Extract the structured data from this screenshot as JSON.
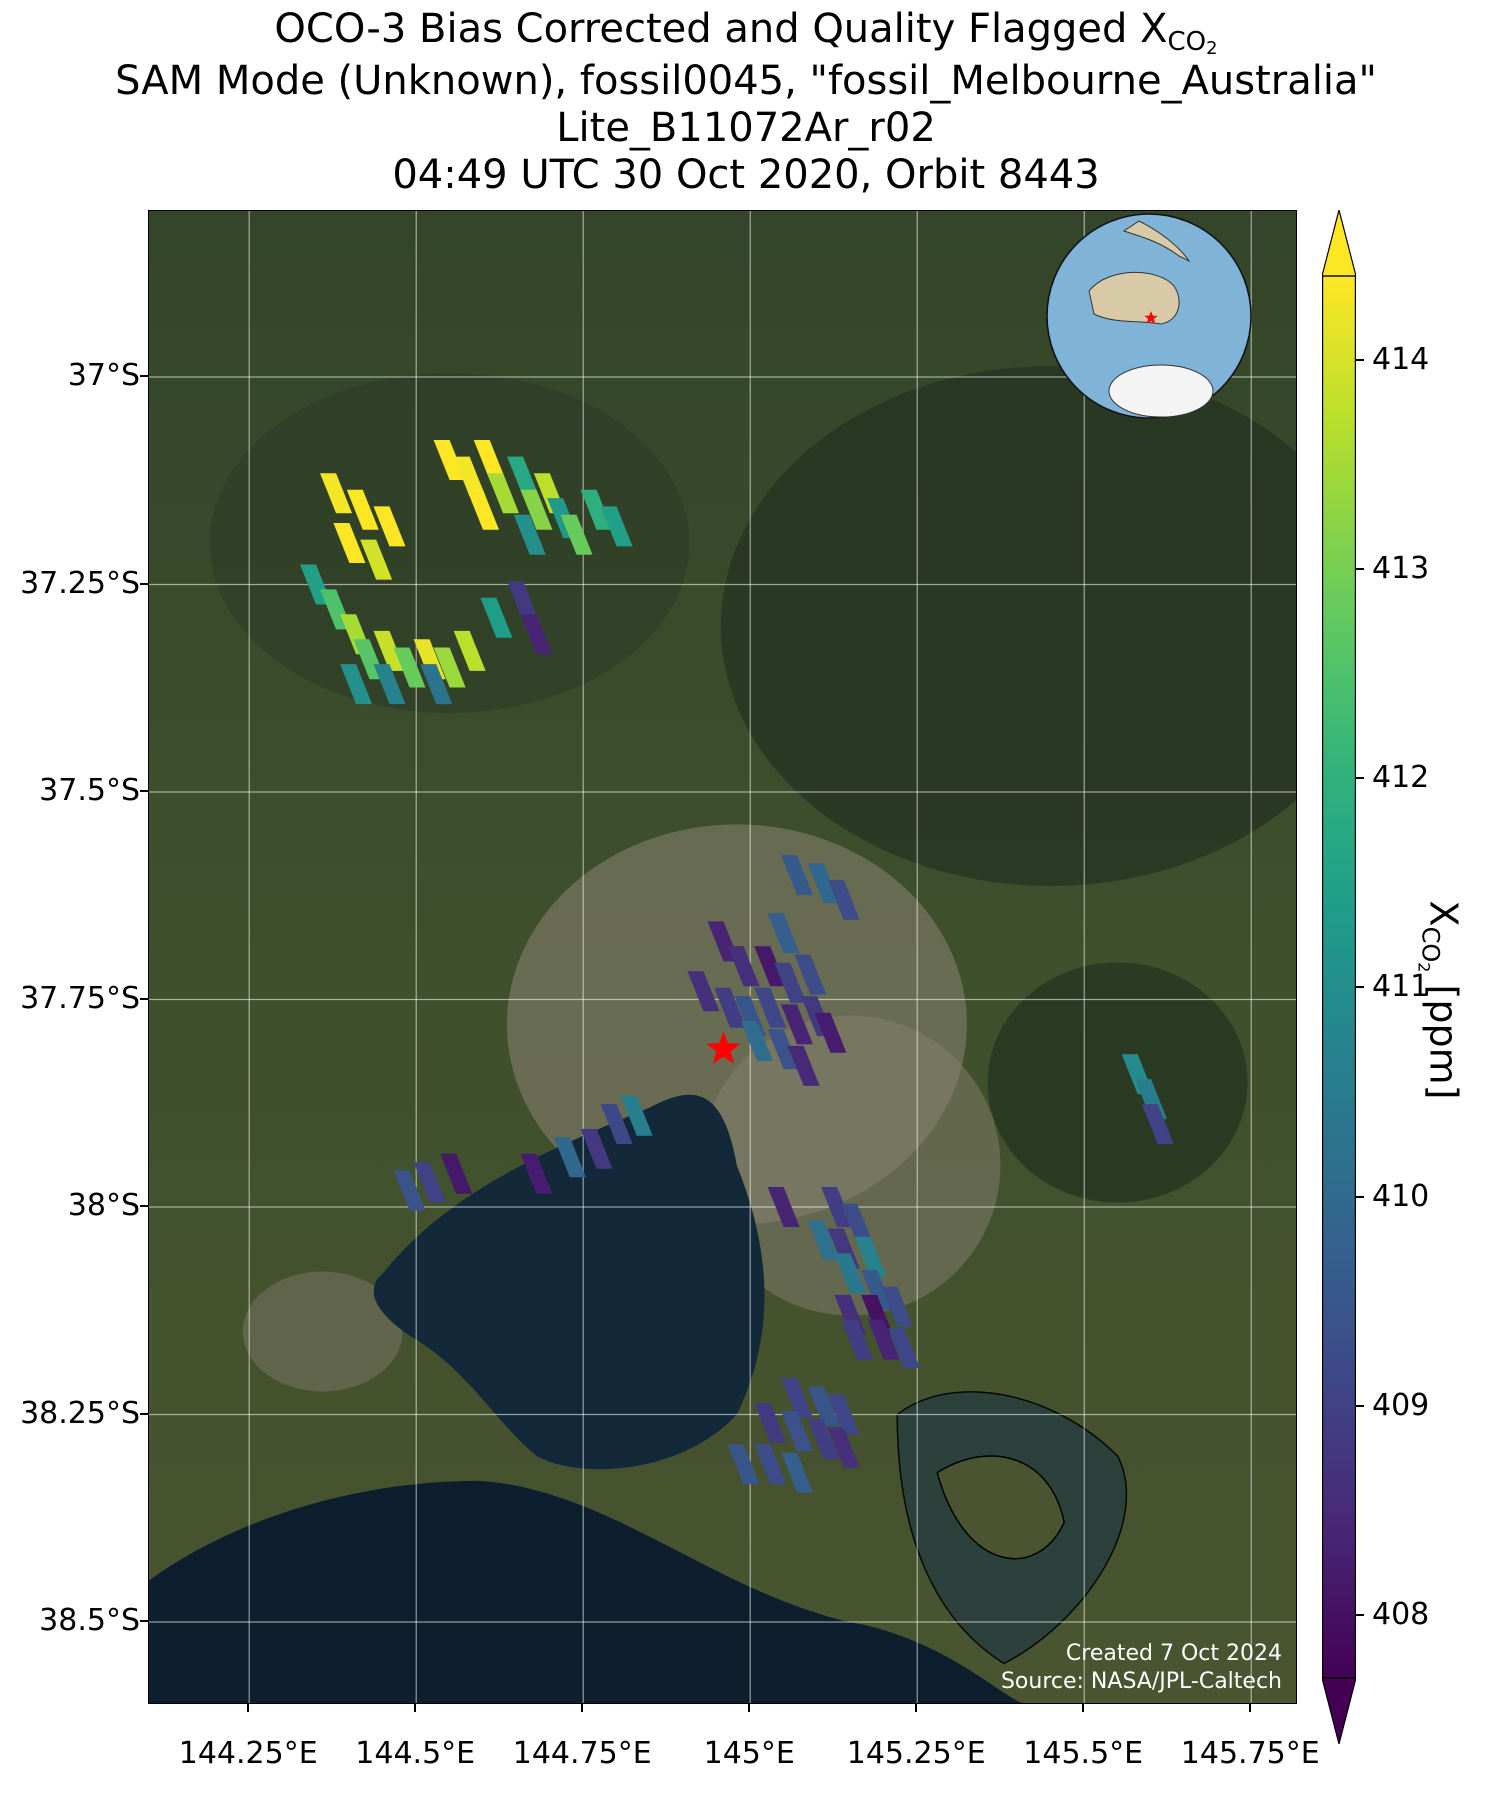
{
  "title": {
    "line1_main": "OCO-3 Bias Corrected and Quality Flagged X",
    "line1_sub": "CO",
    "line1_sub2": "2",
    "line2": "SAM Mode (Unknown), fossil0045, \"fossil_Melbourne_Australia\"",
    "line3": "Lite_B11072Ar_r02",
    "line4": "04:49 UTC 30 Oct 2020, Orbit 8443"
  },
  "map": {
    "lon_range": [
      144.1,
      145.82
    ],
    "lat_range": [
      -38.6,
      -36.8
    ],
    "lat_ticks": [
      {
        "value": -37.0,
        "label": "37°S"
      },
      {
        "value": -37.25,
        "label": "37.25°S"
      },
      {
        "value": -37.5,
        "label": "37.5°S"
      },
      {
        "value": -37.75,
        "label": "37.75°S"
      },
      {
        "value": -38.0,
        "label": "38°S"
      },
      {
        "value": -38.25,
        "label": "38.25°S"
      },
      {
        "value": -38.5,
        "label": "38.5°S"
      }
    ],
    "lon_ticks": [
      {
        "value": 144.25,
        "label": "144.25°E"
      },
      {
        "value": 144.5,
        "label": "144.5°E"
      },
      {
        "value": 144.75,
        "label": "144.75°E"
      },
      {
        "value": 145.0,
        "label": "145°E"
      },
      {
        "value": 145.25,
        "label": "145.25°E"
      },
      {
        "value": 145.5,
        "label": "145.5°E"
      },
      {
        "value": 145.75,
        "label": "145.75°E"
      }
    ],
    "target_marker": {
      "name": "fossil_Melbourne_Australia",
      "lon": 144.96,
      "lat": -37.81,
      "color": "#ff0000"
    },
    "soundings": [
      {
        "lon": 144.38,
        "lat": -37.14,
        "xco2": 413.9
      },
      {
        "lon": 144.42,
        "lat": -37.16,
        "xco2": 414.1
      },
      {
        "lon": 144.4,
        "lat": -37.2,
        "xco2": 414.0
      },
      {
        "lon": 144.44,
        "lat": -37.22,
        "xco2": 413.6
      },
      {
        "lon": 144.46,
        "lat": -37.18,
        "xco2": 414.2
      },
      {
        "lon": 144.55,
        "lat": -37.1,
        "xco2": 414.1
      },
      {
        "lon": 144.58,
        "lat": -37.12,
        "xco2": 413.9
      },
      {
        "lon": 144.61,
        "lat": -37.1,
        "xco2": 414.2
      },
      {
        "lon": 144.63,
        "lat": -37.14,
        "xco2": 413.2
      },
      {
        "lon": 144.66,
        "lat": -37.12,
        "xco2": 411.6
      },
      {
        "lon": 144.68,
        "lat": -37.16,
        "xco2": 412.9
      },
      {
        "lon": 144.7,
        "lat": -37.14,
        "xco2": 413.4
      },
      {
        "lon": 144.72,
        "lat": -37.17,
        "xco2": 411.2
      },
      {
        "lon": 144.74,
        "lat": -37.19,
        "xco2": 412.6
      },
      {
        "lon": 144.77,
        "lat": -37.16,
        "xco2": 411.8
      },
      {
        "lon": 144.8,
        "lat": -37.18,
        "xco2": 411.4
      },
      {
        "lon": 144.6,
        "lat": -37.16,
        "xco2": 414.0
      },
      {
        "lon": 144.67,
        "lat": -37.19,
        "xco2": 411.0
      },
      {
        "lon": 144.35,
        "lat": -37.25,
        "xco2": 411.4
      },
      {
        "lon": 144.38,
        "lat": -37.28,
        "xco2": 412.3
      },
      {
        "lon": 144.41,
        "lat": -37.31,
        "xco2": 413.2
      },
      {
        "lon": 144.43,
        "lat": -37.34,
        "xco2": 412.4
      },
      {
        "lon": 144.46,
        "lat": -37.33,
        "xco2": 413.5
      },
      {
        "lon": 144.49,
        "lat": -37.35,
        "xco2": 412.6
      },
      {
        "lon": 144.52,
        "lat": -37.34,
        "xco2": 413.8
      },
      {
        "lon": 144.55,
        "lat": -37.35,
        "xco2": 413.1
      },
      {
        "lon": 144.58,
        "lat": -37.33,
        "xco2": 413.4
      },
      {
        "lon": 144.41,
        "lat": -37.37,
        "xco2": 411.0
      },
      {
        "lon": 144.46,
        "lat": -37.37,
        "xco2": 410.7
      },
      {
        "lon": 144.53,
        "lat": -37.37,
        "xco2": 410.3
      },
      {
        "lon": 144.62,
        "lat": -37.29,
        "xco2": 411.3
      },
      {
        "lon": 144.66,
        "lat": -37.27,
        "xco2": 409.0
      },
      {
        "lon": 144.68,
        "lat": -37.31,
        "xco2": 408.6
      },
      {
        "lon": 145.07,
        "lat": -37.6,
        "xco2": 409.7
      },
      {
        "lon": 145.11,
        "lat": -37.61,
        "xco2": 410.0
      },
      {
        "lon": 145.14,
        "lat": -37.63,
        "xco2": 409.4
      },
      {
        "lon": 145.05,
        "lat": -37.67,
        "xco2": 409.8
      },
      {
        "lon": 144.96,
        "lat": -37.68,
        "xco2": 408.6
      },
      {
        "lon": 144.99,
        "lat": -37.71,
        "xco2": 408.8
      },
      {
        "lon": 145.03,
        "lat": -37.71,
        "xco2": 408.4
      },
      {
        "lon": 145.06,
        "lat": -37.73,
        "xco2": 409.2
      },
      {
        "lon": 145.09,
        "lat": -37.72,
        "xco2": 409.4
      },
      {
        "lon": 144.93,
        "lat": -37.74,
        "xco2": 408.8
      },
      {
        "lon": 144.97,
        "lat": -37.76,
        "xco2": 409.1
      },
      {
        "lon": 145.0,
        "lat": -37.77,
        "xco2": 409.6
      },
      {
        "lon": 145.03,
        "lat": -37.76,
        "xco2": 409.3
      },
      {
        "lon": 145.07,
        "lat": -37.78,
        "xco2": 408.6
      },
      {
        "lon": 145.1,
        "lat": -37.77,
        "xco2": 409.0
      },
      {
        "lon": 145.12,
        "lat": -37.79,
        "xco2": 408.5
      },
      {
        "lon": 145.01,
        "lat": -37.8,
        "xco2": 410.1
      },
      {
        "lon": 145.05,
        "lat": -37.81,
        "xco2": 409.5
      },
      {
        "lon": 145.08,
        "lat": -37.83,
        "xco2": 408.7
      },
      {
        "lon": 144.83,
        "lat": -37.89,
        "xco2": 410.6
      },
      {
        "lon": 144.8,
        "lat": -37.9,
        "xco2": 409.3
      },
      {
        "lon": 144.77,
        "lat": -37.93,
        "xco2": 409.0
      },
      {
        "lon": 144.73,
        "lat": -37.94,
        "xco2": 410.0
      },
      {
        "lon": 144.68,
        "lat": -37.96,
        "xco2": 408.5
      },
      {
        "lon": 144.56,
        "lat": -37.96,
        "xco2": 408.4
      },
      {
        "lon": 144.52,
        "lat": -37.97,
        "xco2": 409.2
      },
      {
        "lon": 144.49,
        "lat": -37.98,
        "xco2": 409.5
      },
      {
        "lon": 145.58,
        "lat": -37.84,
        "xco2": 410.9
      },
      {
        "lon": 145.6,
        "lat": -37.87,
        "xco2": 410.6
      },
      {
        "lon": 145.61,
        "lat": -37.9,
        "xco2": 409.2
      },
      {
        "lon": 145.05,
        "lat": -38.0,
        "xco2": 408.6
      },
      {
        "lon": 145.13,
        "lat": -38.0,
        "xco2": 409.1
      },
      {
        "lon": 145.16,
        "lat": -38.02,
        "xco2": 409.4
      },
      {
        "lon": 145.11,
        "lat": -38.04,
        "xco2": 410.2
      },
      {
        "lon": 145.14,
        "lat": -38.05,
        "xco2": 409.0
      },
      {
        "lon": 145.18,
        "lat": -38.06,
        "xco2": 410.7
      },
      {
        "lon": 145.15,
        "lat": -38.08,
        "xco2": 410.4
      },
      {
        "lon": 145.19,
        "lat": -38.1,
        "xco2": 409.7
      },
      {
        "lon": 145.15,
        "lat": -38.13,
        "xco2": 408.8
      },
      {
        "lon": 145.19,
        "lat": -38.13,
        "xco2": 408.3
      },
      {
        "lon": 145.22,
        "lat": -38.12,
        "xco2": 409.4
      },
      {
        "lon": 145.16,
        "lat": -38.16,
        "xco2": 409.1
      },
      {
        "lon": 145.2,
        "lat": -38.16,
        "xco2": 408.6
      },
      {
        "lon": 145.23,
        "lat": -38.17,
        "xco2": 409.3
      },
      {
        "lon": 145.07,
        "lat": -38.23,
        "xco2": 409.2
      },
      {
        "lon": 145.11,
        "lat": -38.24,
        "xco2": 409.6
      },
      {
        "lon": 145.14,
        "lat": -38.25,
        "xco2": 409.3
      },
      {
        "lon": 145.03,
        "lat": -38.26,
        "xco2": 409.0
      },
      {
        "lon": 145.07,
        "lat": -38.27,
        "xco2": 409.5
      },
      {
        "lon": 145.11,
        "lat": -38.28,
        "xco2": 409.1
      },
      {
        "lon": 145.14,
        "lat": -38.29,
        "xco2": 408.8
      },
      {
        "lon": 144.99,
        "lat": -38.31,
        "xco2": 409.6
      },
      {
        "lon": 145.03,
        "lat": -38.31,
        "xco2": 409.4
      },
      {
        "lon": 145.07,
        "lat": -38.32,
        "xco2": 409.8
      }
    ]
  },
  "colorbar": {
    "min": 407.7,
    "max": 414.4,
    "ticks": [
      408,
      409,
      410,
      411,
      412,
      413,
      414
    ],
    "tick_labels": [
      "408",
      "409",
      "410",
      "411",
      "412",
      "413",
      "414"
    ],
    "label_main": "X",
    "label_sub": "CO",
    "label_sub2": "2",
    "label_units": " [ppm]",
    "colormap": "viridis",
    "extend": "both"
  },
  "inset_globe": {
    "description_label": "",
    "marker_color": "#ff0000"
  },
  "credits": {
    "created": "Created 7 Oct 2024",
    "source": "Source: NASA/JPL-Caltech"
  }
}
